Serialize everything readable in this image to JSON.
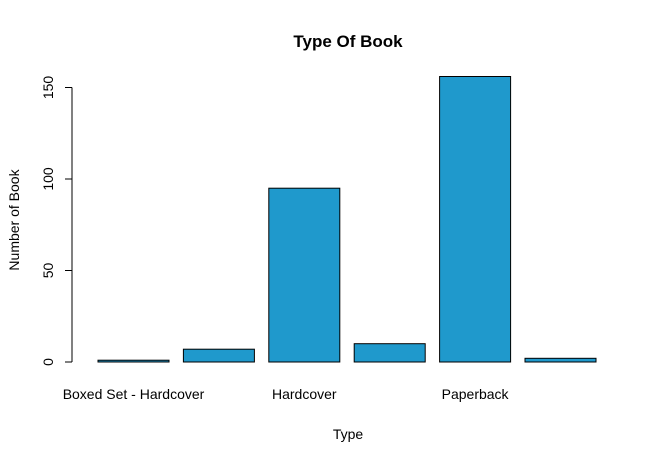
{
  "chart_data": {
    "type": "bar",
    "title": "Type Of Book",
    "xlabel": "Type",
    "ylabel": "Number of Book",
    "categories": [
      "Boxed Set - Hardcover",
      "",
      "Hardcover",
      "",
      "Paperback",
      ""
    ],
    "values": [
      1,
      7,
      95,
      10,
      156,
      2
    ],
    "ylim": [
      0,
      160
    ],
    "yticks": [
      0,
      50,
      100,
      150
    ],
    "bar_color": "#1f99cc",
    "grid": false,
    "legend": "none"
  }
}
